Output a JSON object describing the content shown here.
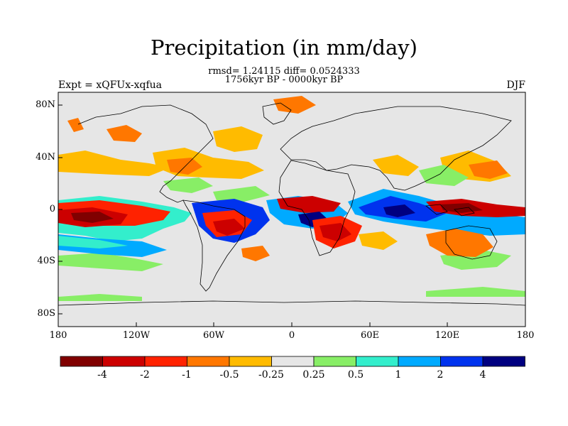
{
  "title": "Precipitation (in mm/day)",
  "stats": "rmsd= 1.24115 diff= 0.0524333",
  "period": "1756kyr BP - 0000kyr BP",
  "experiment": "Expt = xQFUx-xqfua",
  "season": "DJF",
  "lat_labels": [
    "80N",
    "40N",
    "0",
    "40S",
    "80S"
  ],
  "lon_labels": [
    "180",
    "120W",
    "60W",
    "0",
    "60E",
    "120E",
    "180"
  ],
  "colorbar": {
    "labels": [
      "-4",
      "-2",
      "-1",
      "-0.5",
      "-0.25",
      "0.25",
      "0.5",
      "1",
      "2",
      "4"
    ],
    "colors": [
      "#800000",
      "#cc0000",
      "#ff2200",
      "#ff7700",
      "#ffbb00",
      "#e6e6e6",
      "#88ee66",
      "#33eecc",
      "#00aaff",
      "#0033ee",
      "#000080"
    ]
  },
  "map": {
    "background": "#e6e6e6",
    "coastline": "#000000"
  }
}
